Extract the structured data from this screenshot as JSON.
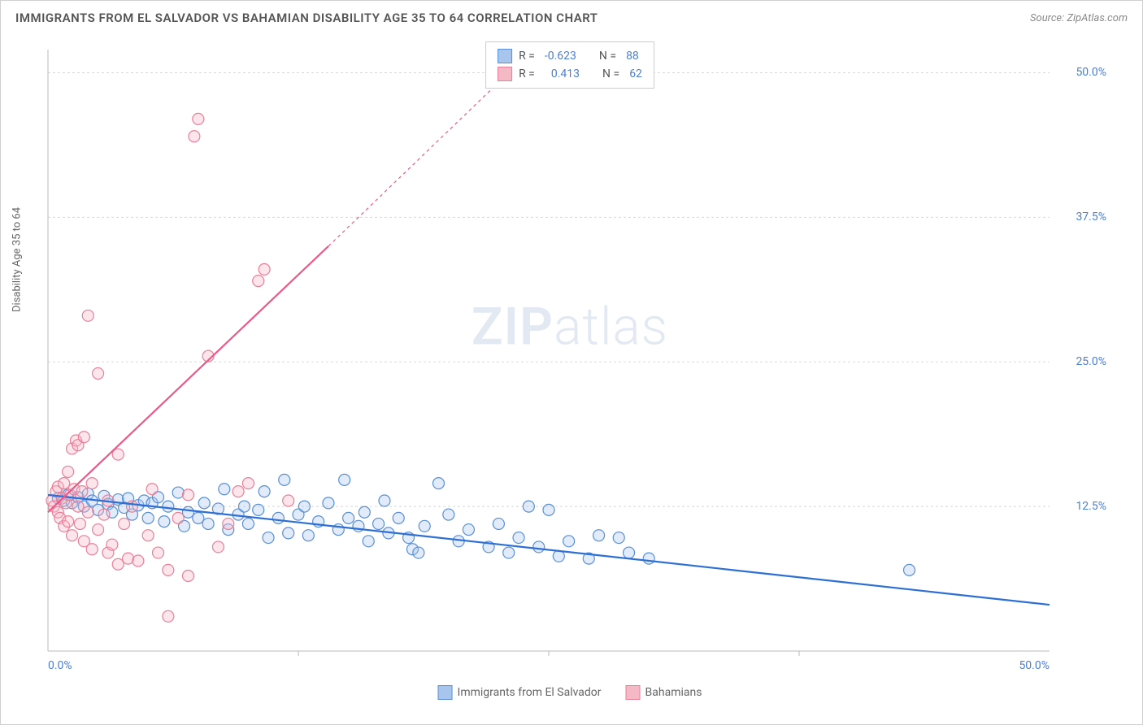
{
  "title": "IMMIGRANTS FROM EL SALVADOR VS BAHAMIAN DISABILITY AGE 35 TO 64 CORRELATION CHART",
  "source_label": "Source: ",
  "source_name": "ZipAtlas.com",
  "y_axis_label": "Disability Age 35 to 64",
  "watermark": {
    "bold": "ZIP",
    "light": "atlas"
  },
  "chart": {
    "type": "scatter",
    "background_color": "#ffffff",
    "grid_color": "#d8d8d8",
    "axis_color": "#bbbbbb",
    "text_color": "#666666",
    "tick_label_color": "#4a7fd6",
    "xlim": [
      0,
      50
    ],
    "ylim": [
      0,
      52
    ],
    "x_ticks": [
      0,
      50
    ],
    "x_tick_labels": [
      "0.0%",
      "50.0%"
    ],
    "y_ticks": [
      12.5,
      25.0,
      37.5,
      50.0
    ],
    "y_tick_labels": [
      "12.5%",
      "25.0%",
      "37.5%",
      "50.0%"
    ],
    "marker_radius": 7,
    "marker_stroke_width": 1.2,
    "marker_fill_opacity": 0.35,
    "x_minor_ticks": [
      12.5,
      25,
      37.5
    ],
    "series": [
      {
        "name": "Immigrants from El Salvador",
        "color_fill": "#a8c6ed",
        "color_stroke": "#5a8fd6",
        "line_color": "#2d6fd4",
        "line_width": 2.2,
        "R": "-0.623",
        "N": "88",
        "trend": {
          "x1": 0,
          "y1": 13.5,
          "x2": 50,
          "y2": 4.0
        },
        "points": [
          [
            0.5,
            13.2
          ],
          [
            0.8,
            13.0
          ],
          [
            1.0,
            13.5
          ],
          [
            1.2,
            12.8
          ],
          [
            1.5,
            13.3
          ],
          [
            1.8,
            12.5
          ],
          [
            2.0,
            13.6
          ],
          [
            2.2,
            13.0
          ],
          [
            2.5,
            12.2
          ],
          [
            2.8,
            13.4
          ],
          [
            3.0,
            12.7
          ],
          [
            3.2,
            12.0
          ],
          [
            3.5,
            13.1
          ],
          [
            3.8,
            12.4
          ],
          [
            4.0,
            13.2
          ],
          [
            4.2,
            11.8
          ],
          [
            4.5,
            12.6
          ],
          [
            4.8,
            13.0
          ],
          [
            5.0,
            11.5
          ],
          [
            5.2,
            12.8
          ],
          [
            5.5,
            13.3
          ],
          [
            5.8,
            11.2
          ],
          [
            6.0,
            12.5
          ],
          [
            6.5,
            13.7
          ],
          [
            6.8,
            10.8
          ],
          [
            7.0,
            12.0
          ],
          [
            7.5,
            11.5
          ],
          [
            7.8,
            12.8
          ],
          [
            8.0,
            11.0
          ],
          [
            8.5,
            12.3
          ],
          [
            8.8,
            14.0
          ],
          [
            9.0,
            10.5
          ],
          [
            9.5,
            11.8
          ],
          [
            9.8,
            12.5
          ],
          [
            10.0,
            11.0
          ],
          [
            10.5,
            12.2
          ],
          [
            10.8,
            13.8
          ],
          [
            11.0,
            9.8
          ],
          [
            11.5,
            11.5
          ],
          [
            11.8,
            14.8
          ],
          [
            12.0,
            10.2
          ],
          [
            12.5,
            11.8
          ],
          [
            12.8,
            12.5
          ],
          [
            13.0,
            10.0
          ],
          [
            13.5,
            11.2
          ],
          [
            14.0,
            12.8
          ],
          [
            14.5,
            10.5
          ],
          [
            14.8,
            14.8
          ],
          [
            15.0,
            11.5
          ],
          [
            15.5,
            10.8
          ],
          [
            15.8,
            12.0
          ],
          [
            16.0,
            9.5
          ],
          [
            16.5,
            11.0
          ],
          [
            16.8,
            13.0
          ],
          [
            17.0,
            10.2
          ],
          [
            17.5,
            11.5
          ],
          [
            18.0,
            9.8
          ],
          [
            18.2,
            8.8
          ],
          [
            18.5,
            8.5
          ],
          [
            18.8,
            10.8
          ],
          [
            19.5,
            14.5
          ],
          [
            20.0,
            11.8
          ],
          [
            20.5,
            9.5
          ],
          [
            21.0,
            10.5
          ],
          [
            22.0,
            9.0
          ],
          [
            22.5,
            11.0
          ],
          [
            23.0,
            8.5
          ],
          [
            23.5,
            9.8
          ],
          [
            24.0,
            12.5
          ],
          [
            24.5,
            9.0
          ],
          [
            25.0,
            12.2
          ],
          [
            25.5,
            8.2
          ],
          [
            26.0,
            9.5
          ],
          [
            27.0,
            8.0
          ],
          [
            27.5,
            10.0
          ],
          [
            28.5,
            9.8
          ],
          [
            29.0,
            8.5
          ],
          [
            30.0,
            8.0
          ],
          [
            43.0,
            7.0
          ]
        ]
      },
      {
        "name": "Bahamians",
        "color_fill": "#f5b8c5",
        "color_stroke": "#e8809a",
        "line_color": "#e85a8a",
        "line_width": 2.2,
        "R": "0.413",
        "N": "62",
        "trend_solid": {
          "x1": 0,
          "y1": 12.0,
          "x2": 14,
          "y2": 35.0
        },
        "trend_dash": {
          "x1": 14,
          "y1": 35.0,
          "x2": 23,
          "y2": 50.0
        },
        "points": [
          [
            0.2,
            13.0
          ],
          [
            0.3,
            12.5
          ],
          [
            0.4,
            13.8
          ],
          [
            0.5,
            12.0
          ],
          [
            0.5,
            14.2
          ],
          [
            0.6,
            11.5
          ],
          [
            0.7,
            13.2
          ],
          [
            0.8,
            14.5
          ],
          [
            0.8,
            10.8
          ],
          [
            0.9,
            12.8
          ],
          [
            1.0,
            15.5
          ],
          [
            1.0,
            11.2
          ],
          [
            1.1,
            13.5
          ],
          [
            1.2,
            17.5
          ],
          [
            1.2,
            10.0
          ],
          [
            1.3,
            14.0
          ],
          [
            1.4,
            18.2
          ],
          [
            1.5,
            12.5
          ],
          [
            1.5,
            17.8
          ],
          [
            1.6,
            11.0
          ],
          [
            1.7,
            13.8
          ],
          [
            1.8,
            18.5
          ],
          [
            1.8,
            9.5
          ],
          [
            2.0,
            29.0
          ],
          [
            2.0,
            12.0
          ],
          [
            2.2,
            14.5
          ],
          [
            2.2,
            8.8
          ],
          [
            2.5,
            24.0
          ],
          [
            2.5,
            10.5
          ],
          [
            2.8,
            11.8
          ],
          [
            3.0,
            8.5
          ],
          [
            3.0,
            13.0
          ],
          [
            3.2,
            9.2
          ],
          [
            3.5,
            17.0
          ],
          [
            3.5,
            7.5
          ],
          [
            3.8,
            11.0
          ],
          [
            4.0,
            8.0
          ],
          [
            4.2,
            12.5
          ],
          [
            4.5,
            7.8
          ],
          [
            5.0,
            10.0
          ],
          [
            5.2,
            14.0
          ],
          [
            5.5,
            8.5
          ],
          [
            6.0,
            7.0
          ],
          [
            6.5,
            11.5
          ],
          [
            6.0,
            3.0
          ],
          [
            7.0,
            6.5
          ],
          [
            7.0,
            13.5
          ],
          [
            7.3,
            44.5
          ],
          [
            7.5,
            46.0
          ],
          [
            8.0,
            25.5
          ],
          [
            8.5,
            9.0
          ],
          [
            9.0,
            11.0
          ],
          [
            9.5,
            13.8
          ],
          [
            10.0,
            14.5
          ],
          [
            10.5,
            32.0
          ],
          [
            10.8,
            33.0
          ],
          [
            12.0,
            13.0
          ]
        ]
      }
    ]
  },
  "legend_top": {
    "r_label": "R =",
    "n_label": "N ="
  },
  "legend_bottom": [
    {
      "label": "Immigrants from El Salvador",
      "fill": "#a8c6ed",
      "stroke": "#5a8fd6"
    },
    {
      "label": "Bahamians",
      "fill": "#f5b8c5",
      "stroke": "#e8809a"
    }
  ]
}
